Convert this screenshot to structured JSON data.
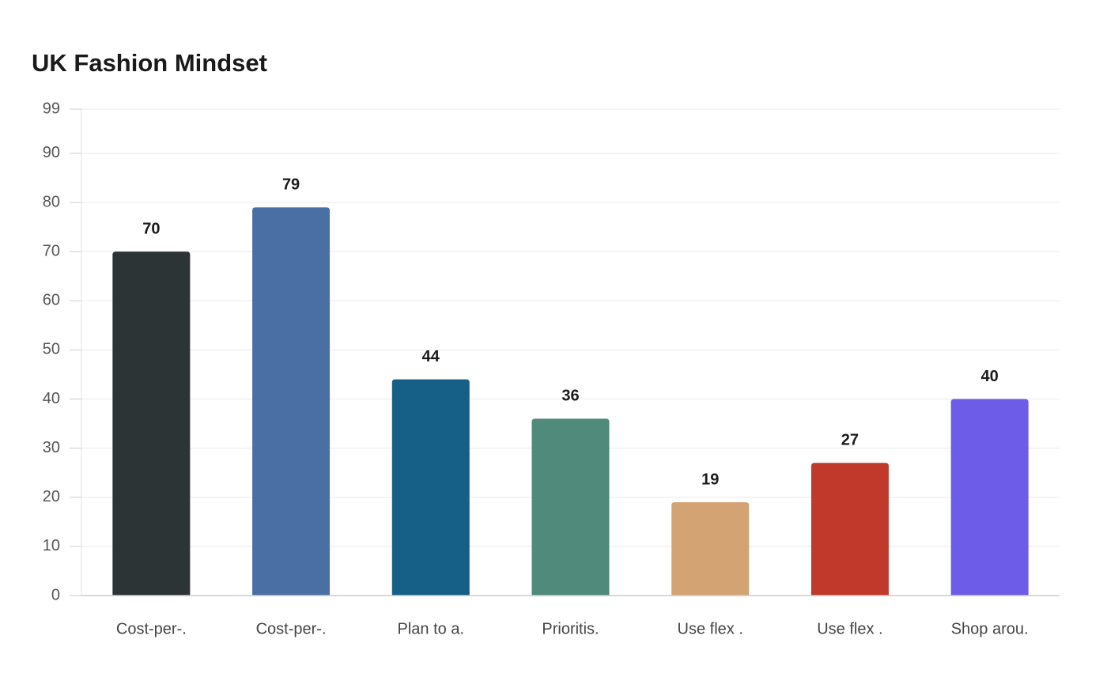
{
  "chart_data": {
    "type": "bar",
    "title": "UK Fashion Mindset",
    "categories": [
      "Cost-per-.",
      "Cost-per-.",
      "Plan to a.",
      "Prioritis.",
      "Use flex .",
      "Use flex .",
      "Shop arou."
    ],
    "values": [
      70,
      79,
      44,
      36,
      19,
      27,
      40
    ],
    "colors": [
      "#2d3436",
      "#4a6fa5",
      "#166088",
      "#4f8a7a",
      "#d4a373",
      "#c0392b",
      "#6c5ce7"
    ],
    "ylim": [
      0,
      99
    ],
    "yticks": [
      0,
      10,
      20,
      30,
      40,
      50,
      60,
      70,
      80,
      90,
      99
    ],
    "grid": true
  }
}
